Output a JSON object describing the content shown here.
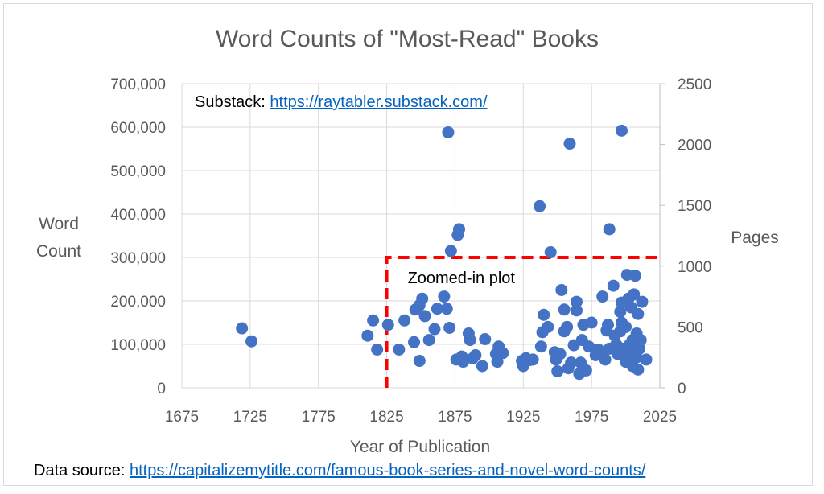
{
  "chart_data": {
    "type": "scatter",
    "title": "Word Counts of \"Most-Read\" Books",
    "xlabel": "Year of Publication",
    "ylabel_left_line1": "Word",
    "ylabel_left_line2": "Count",
    "ylabel_right": "Pages",
    "xlim": [
      1675,
      2025
    ],
    "ylim": [
      0,
      700000
    ],
    "ylim_right": [
      0,
      2500
    ],
    "x_ticks": [
      "1675",
      "1725",
      "1775",
      "1825",
      "1875",
      "1925",
      "1975",
      "2025"
    ],
    "y_ticks": [
      "0",
      "100,000",
      "200,000",
      "300,000",
      "400,000",
      "500,000",
      "600,000",
      "700,000"
    ],
    "y_right_ticks": [
      "0",
      "500",
      "1000",
      "1500",
      "2000",
      "2500"
    ],
    "grid": true,
    "marker_color": "#4472c4",
    "points": [
      [
        1719,
        137000
      ],
      [
        1726,
        107000
      ],
      [
        1811,
        120000
      ],
      [
        1815,
        155000
      ],
      [
        1818,
        88000
      ],
      [
        1826,
        145000
      ],
      [
        1834,
        88000
      ],
      [
        1838,
        155000
      ],
      [
        1845,
        105000
      ],
      [
        1846,
        180000
      ],
      [
        1849,
        62000
      ],
      [
        1849,
        190000
      ],
      [
        1851,
        205000
      ],
      [
        1853,
        165000
      ],
      [
        1856,
        110000
      ],
      [
        1860,
        135000
      ],
      [
        1862,
        182000
      ],
      [
        1867,
        210000
      ],
      [
        1869,
        182000
      ],
      [
        1870,
        588000
      ],
      [
        1871,
        138000
      ],
      [
        1872,
        315000
      ],
      [
        1876,
        65000
      ],
      [
        1877,
        352000
      ],
      [
        1878,
        365000
      ],
      [
        1880,
        72000
      ],
      [
        1881,
        60000
      ],
      [
        1885,
        125000
      ],
      [
        1886,
        110000
      ],
      [
        1888,
        68000
      ],
      [
        1890,
        75000
      ],
      [
        1895,
        50000
      ],
      [
        1897,
        112000
      ],
      [
        1905,
        78000
      ],
      [
        1906,
        60000
      ],
      [
        1907,
        95000
      ],
      [
        1910,
        80000
      ],
      [
        1924,
        62000
      ],
      [
        1925,
        50000
      ],
      [
        1926,
        58000
      ],
      [
        1927,
        68000
      ],
      [
        1930,
        64000
      ],
      [
        1932,
        65000
      ],
      [
        1937,
        418000
      ],
      [
        1938,
        95000
      ],
      [
        1939,
        128000
      ],
      [
        1940,
        168000
      ],
      [
        1943,
        140000
      ],
      [
        1945,
        312000
      ],
      [
        1948,
        82000
      ],
      [
        1949,
        65000
      ],
      [
        1950,
        38000
      ],
      [
        1952,
        78000
      ],
      [
        1953,
        225000
      ],
      [
        1955,
        130000
      ],
      [
        1955,
        180000
      ],
      [
        1957,
        140000
      ],
      [
        1958,
        45000
      ],
      [
        1959,
        562000
      ],
      [
        1960,
        58000
      ],
      [
        1962,
        98000
      ],
      [
        1964,
        178000
      ],
      [
        1964,
        198000
      ],
      [
        1966,
        32000
      ],
      [
        1967,
        58000
      ],
      [
        1968,
        110000
      ],
      [
        1969,
        145000
      ],
      [
        1971,
        40000
      ],
      [
        1973,
        95000
      ],
      [
        1975,
        150000
      ],
      [
        1978,
        75000
      ],
      [
        1980,
        88000
      ],
      [
        1983,
        78000
      ],
      [
        1983,
        210000
      ],
      [
        1985,
        65000
      ],
      [
        1986,
        132000
      ],
      [
        1987,
        145000
      ],
      [
        1988,
        365000
      ],
      [
        1988,
        90000
      ],
      [
        1991,
        235000
      ],
      [
        1992,
        120000
      ],
      [
        1993,
        100000
      ],
      [
        1994,
        78000
      ],
      [
        1995,
        93000
      ],
      [
        1996,
        130000
      ],
      [
        1996,
        175000
      ],
      [
        1997,
        150000
      ],
      [
        1997,
        196000
      ],
      [
        1997,
        592000
      ],
      [
        1999,
        90000
      ],
      [
        2000,
        60000
      ],
      [
        2000,
        140000
      ],
      [
        2001,
        260000
      ],
      [
        2001,
        80000
      ],
      [
        2002,
        205000
      ],
      [
        2003,
        100000
      ],
      [
        2003,
        75000
      ],
      [
        2004,
        185000
      ],
      [
        2005,
        50000
      ],
      [
        2005,
        110000
      ],
      [
        2006,
        98000
      ],
      [
        2006,
        215000
      ],
      [
        2007,
        258000
      ],
      [
        2008,
        70000
      ],
      [
        2008,
        125000
      ],
      [
        2009,
        42000
      ],
      [
        2009,
        170000
      ],
      [
        2010,
        90000
      ],
      [
        2011,
        110000
      ],
      [
        2012,
        198000
      ],
      [
        2015,
        65000
      ]
    ],
    "annotation": {
      "label": "Zoomed-in plot",
      "box_x0": 1825,
      "box_y0": 300000,
      "color": "#ff0000"
    }
  },
  "notes": {
    "substack_label": "Substack: ",
    "substack_url": "https://raytabler.substack.com/",
    "source_label": "Data source: ",
    "source_url": "https://capitalizemytitle.com/famous-book-series-and-novel-word-counts/"
  }
}
